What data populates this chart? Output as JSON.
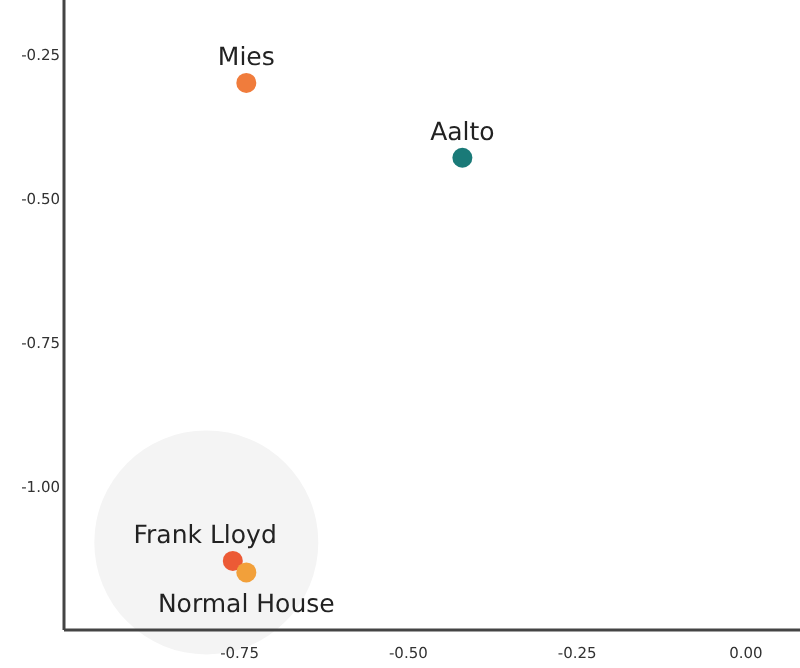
{
  "chart_data": {
    "type": "scatter",
    "xlim": [
      -1.01,
      0.08
    ],
    "ylim": [
      -1.25,
      -0.156
    ],
    "xticks": [
      -0.75,
      {
        "value": -0.5,
        "label": "-0.50"
      },
      -0.25,
      {
        "value": 0,
        "label": "0.00"
      }
    ],
    "yticks": [
      -0.25,
      {
        "value": -0.5,
        "label": "-0.50"
      },
      -0.75,
      {
        "value": -1,
        "label": "-1.00"
      }
    ],
    "grid": false,
    "legend": false,
    "marker": "circle",
    "series": [
      {
        "name": "Mies",
        "color": "#f07c3c",
        "x": [
          -0.74
        ],
        "values": [
          -0.3
        ]
      },
      {
        "name": "Aalto",
        "color": "#1a7a78",
        "x": [
          -0.42
        ],
        "values": [
          -0.43
        ]
      },
      {
        "name": "Frank Lloyd",
        "color": "#ec5a35",
        "x": [
          -0.76
        ],
        "values": [
          -1.13
        ]
      },
      {
        "name": "Normal House",
        "color": "#f2a03a",
        "x": [
          -0.74
        ],
        "values": [
          -1.15
        ]
      }
    ]
  }
}
